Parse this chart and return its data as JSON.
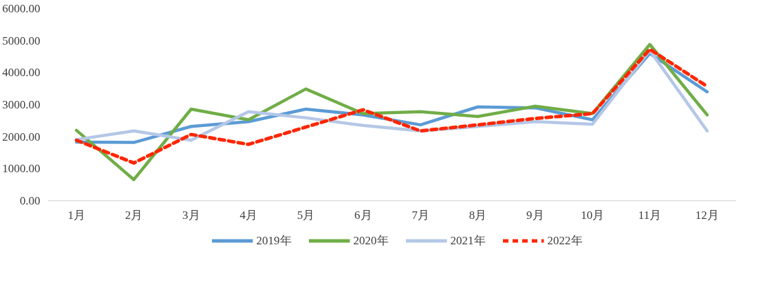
{
  "chart_data": {
    "type": "line",
    "categories": [
      "1月",
      "2月",
      "3月",
      "4月",
      "5月",
      "6月",
      "7月",
      "8月",
      "9月",
      "10月",
      "11月",
      "12月"
    ],
    "ylim": [
      0,
      6000
    ],
    "yticks": [
      {
        "value": 0,
        "label": "0.00"
      },
      {
        "value": 1000,
        "label": "1000.00"
      },
      {
        "value": 2000,
        "label": "2000.00"
      },
      {
        "value": 3000,
        "label": "3000.00"
      },
      {
        "value": 4000,
        "label": "4000.00"
      },
      {
        "value": 5000,
        "label": "5000.00"
      },
      {
        "value": 6000,
        "label": "6000.00"
      }
    ],
    "grid": false,
    "legend": "bottom",
    "marker": "none",
    "series": [
      {
        "name": "2019年",
        "color": "#5b9bd5",
        "line_style": "solid",
        "values": [
          1830,
          1820,
          2320,
          2470,
          2860,
          2680,
          2370,
          2930,
          2900,
          2530,
          4600,
          3400
        ]
      },
      {
        "name": "2020年",
        "color": "#70ad47",
        "line_style": "solid",
        "values": [
          2200,
          660,
          2860,
          2530,
          3490,
          2720,
          2780,
          2630,
          2950,
          2720,
          4880,
          2680
        ]
      },
      {
        "name": "2021年",
        "color": "#b4c7e7",
        "line_style": "solid",
        "values": [
          1910,
          2180,
          1890,
          2780,
          2590,
          2350,
          2180,
          2320,
          2470,
          2390,
          4690,
          2180
        ]
      },
      {
        "name": "2022年",
        "color": "#ff2600",
        "line_style": "dashed",
        "values": [
          1890,
          1180,
          2070,
          1760,
          2300,
          2840,
          2180,
          2370,
          2570,
          2720,
          4730,
          3570
        ]
      }
    ]
  }
}
